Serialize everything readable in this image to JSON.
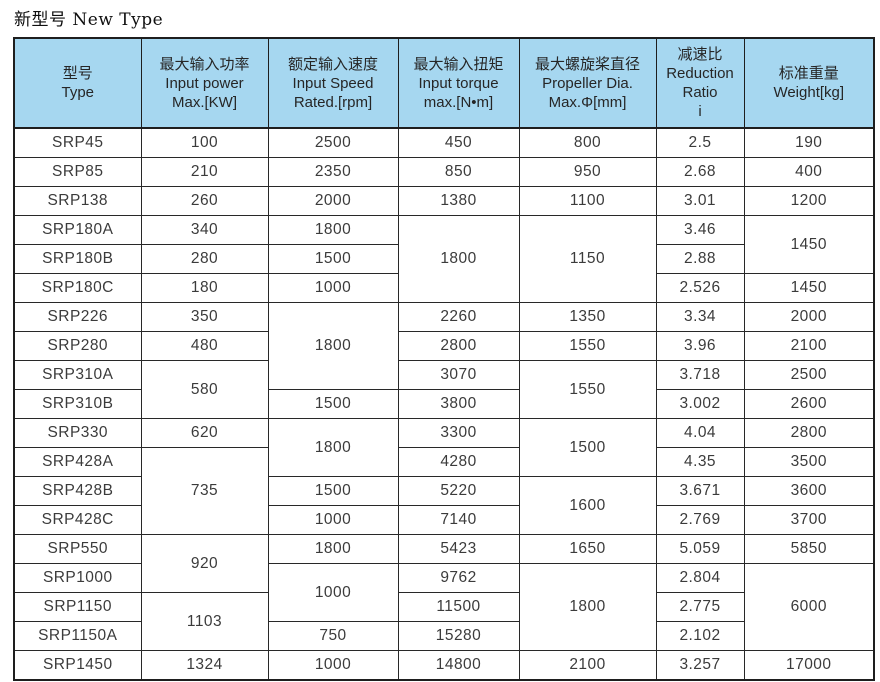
{
  "page_title": "新型号 New Type",
  "colors": {
    "header_bg": "#a6d7f0",
    "border": "#1e1e1e",
    "cell_text": "#3b3b3b"
  },
  "table": {
    "columns": [
      {
        "key": "type",
        "lines": [
          "型号",
          "Type"
        ]
      },
      {
        "key": "input_power",
        "lines": [
          "最大输入功率",
          "Input power",
          "Max.[KW]"
        ]
      },
      {
        "key": "input_speed",
        "lines": [
          "额定输入速度",
          "Input Speed",
          "Rated.[rpm]"
        ]
      },
      {
        "key": "input_torque",
        "lines": [
          "最大输入扭矩",
          "Input torque",
          "max.[N•m]"
        ]
      },
      {
        "key": "propeller_dia",
        "lines": [
          "最大螺旋桨直径",
          "Propeller Dia.",
          "Max.Φ[mm]"
        ]
      },
      {
        "key": "reduction_ratio",
        "lines": [
          "减速比",
          "Reduction",
          "Ratio",
          "i"
        ]
      },
      {
        "key": "weight",
        "lines": [
          "标准重量",
          "Weight[kg]"
        ]
      }
    ],
    "rows": [
      [
        {
          "v": "SRP45"
        },
        {
          "v": "100"
        },
        {
          "v": "2500"
        },
        {
          "v": "450"
        },
        {
          "v": "800"
        },
        {
          "v": "2.5"
        },
        {
          "v": "190"
        }
      ],
      [
        {
          "v": "SRP85"
        },
        {
          "v": "210"
        },
        {
          "v": "2350"
        },
        {
          "v": "850"
        },
        {
          "v": "950"
        },
        {
          "v": "2.68"
        },
        {
          "v": "400"
        }
      ],
      [
        {
          "v": "SRP138"
        },
        {
          "v": "260"
        },
        {
          "v": "2000"
        },
        {
          "v": "1380"
        },
        {
          "v": "1100"
        },
        {
          "v": "3.01"
        },
        {
          "v": "1200"
        }
      ],
      [
        {
          "v": "SRP180A"
        },
        {
          "v": "340"
        },
        {
          "v": "1800"
        },
        {
          "v": "1800",
          "rs": 3
        },
        {
          "v": "1150",
          "rs": 3
        },
        {
          "v": "3.46"
        },
        {
          "v": "1450",
          "rs": 2
        }
      ],
      [
        {
          "v": "SRP180B"
        },
        {
          "v": "280"
        },
        {
          "v": "1500"
        },
        null,
        null,
        {
          "v": "2.88"
        },
        null
      ],
      [
        {
          "v": "SRP180C"
        },
        {
          "v": "180"
        },
        {
          "v": "1000"
        },
        null,
        null,
        {
          "v": "2.526"
        },
        {
          "v": "1450"
        }
      ],
      [
        {
          "v": "SRP226"
        },
        {
          "v": "350"
        },
        {
          "v": "1800",
          "rs": 3
        },
        {
          "v": "2260"
        },
        {
          "v": "1350"
        },
        {
          "v": "3.34"
        },
        {
          "v": "2000"
        }
      ],
      [
        {
          "v": "SRP280"
        },
        {
          "v": "480"
        },
        null,
        {
          "v": "2800"
        },
        {
          "v": "1550"
        },
        {
          "v": "3.96"
        },
        {
          "v": "2100"
        }
      ],
      [
        {
          "v": "SRP310A"
        },
        {
          "v": "580",
          "rs": 2
        },
        null,
        {
          "v": "3070"
        },
        {
          "v": "1550",
          "rs": 2
        },
        {
          "v": "3.718"
        },
        {
          "v": "2500"
        }
      ],
      [
        {
          "v": "SRP310B"
        },
        null,
        {
          "v": "1500"
        },
        {
          "v": "3800"
        },
        null,
        {
          "v": "3.002"
        },
        {
          "v": "2600"
        }
      ],
      [
        {
          "v": "SRP330"
        },
        {
          "v": "620"
        },
        {
          "v": "1800",
          "rs": 2
        },
        {
          "v": "3300"
        },
        {
          "v": "1500",
          "rs": 2
        },
        {
          "v": "4.04"
        },
        {
          "v": "2800"
        }
      ],
      [
        {
          "v": "SRP428A"
        },
        {
          "v": "735",
          "rs": 3
        },
        null,
        {
          "v": "4280"
        },
        null,
        {
          "v": "4.35"
        },
        {
          "v": "3500"
        }
      ],
      [
        {
          "v": "SRP428B"
        },
        null,
        {
          "v": "1500"
        },
        {
          "v": "5220"
        },
        {
          "v": "1600",
          "rs": 2
        },
        {
          "v": "3.671"
        },
        {
          "v": "3600"
        }
      ],
      [
        {
          "v": "SRP428C"
        },
        null,
        {
          "v": "1000"
        },
        {
          "v": "7140"
        },
        null,
        {
          "v": "2.769"
        },
        {
          "v": "3700"
        }
      ],
      [
        {
          "v": "SRP550"
        },
        {
          "v": "920",
          "rs": 2
        },
        {
          "v": "1800"
        },
        {
          "v": "5423"
        },
        {
          "v": "1650"
        },
        {
          "v": "5.059"
        },
        {
          "v": "5850"
        }
      ],
      [
        {
          "v": "SRP1000"
        },
        null,
        {
          "v": "1000",
          "rs": 2
        },
        {
          "v": "9762"
        },
        {
          "v": "1800",
          "rs": 3
        },
        {
          "v": "2.804"
        },
        {
          "v": "6000",
          "rs": 3
        }
      ],
      [
        {
          "v": "SRP1150"
        },
        {
          "v": "1103",
          "rs": 2
        },
        null,
        {
          "v": "11500"
        },
        null,
        {
          "v": "2.775"
        },
        null
      ],
      [
        {
          "v": "SRP1150A"
        },
        null,
        {
          "v": "750"
        },
        {
          "v": "15280"
        },
        null,
        {
          "v": "2.102"
        },
        null
      ],
      [
        {
          "v": "SRP1450"
        },
        {
          "v": "1324"
        },
        {
          "v": "1000"
        },
        {
          "v": "14800"
        },
        {
          "v": "2100"
        },
        {
          "v": "3.257"
        },
        {
          "v": "17000"
        }
      ]
    ]
  }
}
